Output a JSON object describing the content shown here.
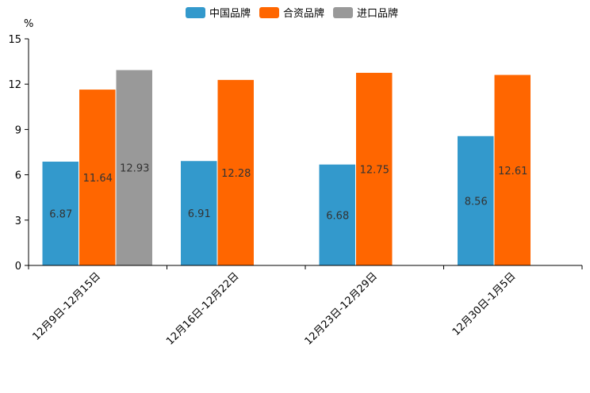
{
  "chart_data": {
    "type": "bar",
    "title": "",
    "unit_label": "%",
    "xlabel": "",
    "ylabel": "%",
    "ylim": [
      0,
      15
    ],
    "yticks": [
      0,
      3,
      6,
      9,
      12,
      15
    ],
    "grid": false,
    "legend_position": "top-center",
    "categories": [
      "12月9日-12月15日",
      "12月16日-12月22日",
      "12月23日-12月29日",
      "12月30日-1月5日"
    ],
    "series": [
      {
        "name": "中国品牌",
        "color": "#3399cc",
        "values": [
          6.87,
          6.91,
          6.68,
          8.56
        ]
      },
      {
        "name": "合资品牌",
        "color": "#ff6600",
        "values": [
          11.64,
          12.28,
          12.75,
          12.61
        ]
      },
      {
        "name": "进口品牌",
        "color": "#999999",
        "values": [
          12.93,
          null,
          null,
          null
        ]
      }
    ]
  }
}
